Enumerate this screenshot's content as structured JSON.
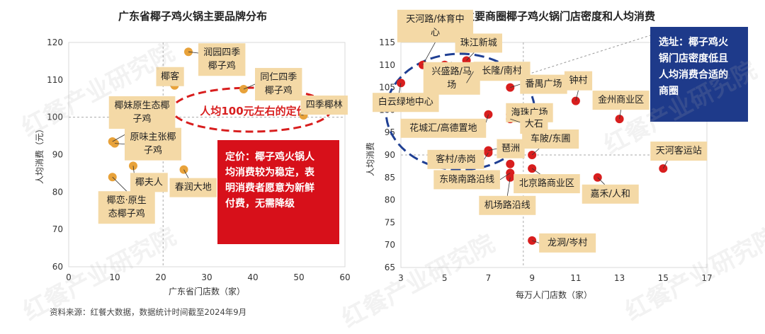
{
  "source_note": "资料来源：红餐大数据，数据统计时间截至2024年9月",
  "watermark": "红餐产业研究院",
  "colors": {
    "left_dot": "#E8A23A",
    "right_dot": "#D81E1E",
    "label_bg": "#F4D9A6",
    "red_box": "#D7101A",
    "navy_box": "#1E3A8A",
    "ellipse_red": "#D81E1E",
    "ellipse_blue": "#1F3F93"
  },
  "chart_data": [
    {
      "type": "scatter",
      "title": "广东省椰子鸡火锅主要品牌分布",
      "xlabel": "广东省门店数（家）",
      "ylabel": "人均消费（元）",
      "xlim": [
        0,
        60
      ],
      "ylim": [
        60,
        120
      ],
      "xticks": [
        0,
        10,
        20,
        30,
        40,
        50,
        60
      ],
      "yticks": [
        60,
        70,
        80,
        90,
        100,
        110,
        120
      ],
      "grid": false,
      "ref_lines": {
        "x": 20.5,
        "y": 100
      },
      "points": [
        {
          "label": "润园四季椰子鸡",
          "x": 26,
          "y": 117.5
        },
        {
          "label": "椰客",
          "x": 23,
          "y": 108.5
        },
        {
          "label": "同仁四季椰子鸡",
          "x": 38,
          "y": 107.5
        },
        {
          "label": "四季椰林",
          "x": 51,
          "y": 100.5
        },
        {
          "label": "椰妹原生态椰子鸡",
          "x": 9.5,
          "y": 93.5
        },
        {
          "label": "原味主张椰子鸡",
          "x": 10,
          "y": 93
        },
        {
          "label": "椰夫人",
          "x": 14,
          "y": 87
        },
        {
          "label": "春润大地",
          "x": 25,
          "y": 86
        },
        {
          "label": "椰恋·原生态椰子鸡",
          "x": 9.5,
          "y": 84
        }
      ],
      "annotations": [
        {
          "text": "人均100元左右的定价"
        },
        {
          "text": "定价：椰子鸡火锅人均消费较为稳定，表明消费者愿意为新鲜付费，无需降级"
        }
      ]
    },
    {
      "type": "scatter",
      "title": "主要商圈椰子鸡火锅门店密度和人均消费",
      "xlabel": "每万人门店数（家）",
      "ylabel": "人均消费",
      "xlim": [
        3,
        17
      ],
      "ylim": [
        65,
        115
      ],
      "xticks": [
        3,
        5,
        7,
        9,
        11,
        13,
        15,
        17
      ],
      "yticks": [
        65,
        70,
        75,
        80,
        85,
        90,
        95,
        100,
        105,
        110,
        115
      ],
      "grid": false,
      "ref_lines": {
        "x": 8.6,
        "y": 90
      },
      "points": [
        {
          "label": "天河路/体育中心",
          "x": 4,
          "y": 110
        },
        {
          "label": "珠江新城",
          "x": 6,
          "y": 111
        },
        {
          "label": "白云绿地中心",
          "x": 3,
          "y": 106
        },
        {
          "label": "兴盛路/马场",
          "x": 5,
          "y": 110
        },
        {
          "label": "长隆/南村",
          "x": 6,
          "y": 106
        },
        {
          "label": "番禺广场",
          "x": 8,
          "y": 105
        },
        {
          "label": "钟村",
          "x": 11,
          "y": 102
        },
        {
          "label": "金州商业区",
          "x": 13,
          "y": 98
        },
        {
          "label": "海珠广场",
          "x": 8,
          "y": 99
        },
        {
          "label": "花城汇/高德置地",
          "x": 7,
          "y": 99
        },
        {
          "label": "大石",
          "x": 8,
          "y": 98
        },
        {
          "label": "琶洲",
          "x": 7,
          "y": 91
        },
        {
          "label": "客村/赤岗",
          "x": 7,
          "y": 90.5
        },
        {
          "label": "车陂/东圃",
          "x": 9,
          "y": 90
        },
        {
          "label": "天河客运站",
          "x": 15,
          "y": 87
        },
        {
          "label": "东晓南路沿线",
          "x": 8,
          "y": 86
        },
        {
          "label": "北京路商业区",
          "x": 9,
          "y": 87
        },
        {
          "label": "嘉禾/人和",
          "x": 12,
          "y": 85
        },
        {
          "label": "机场路沿线",
          "x": 8,
          "y": 85
        },
        {
          "label": "龙洞/岑村",
          "x": 9,
          "y": 71
        },
        {
          "label": "",
          "x": 8,
          "y": 88
        }
      ],
      "annotations": [
        {
          "text": "选址：椰子鸡火锅门店密度低且人均消费合适的商圈"
        }
      ]
    }
  ]
}
